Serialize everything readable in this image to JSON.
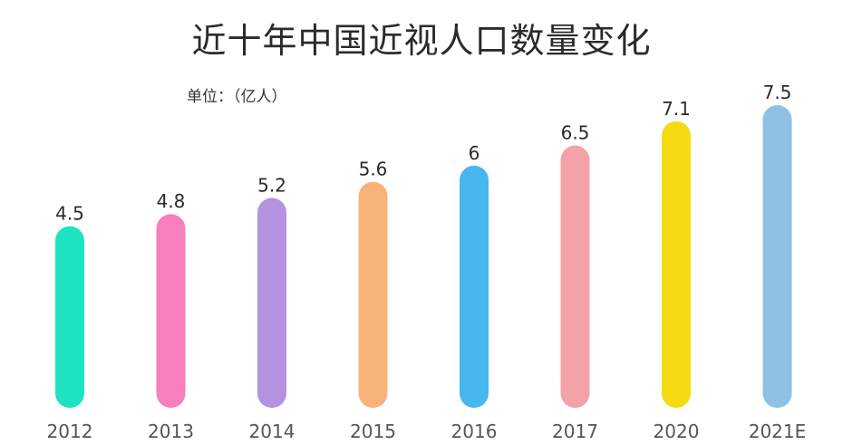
{
  "chart_data": {
    "type": "bar",
    "title": "近十年中国近视人口数量变化",
    "unit_label": "单位：（亿人）",
    "categories": [
      "2012",
      "2013",
      "2014",
      "2015",
      "2016",
      "2017",
      "2020",
      "2021E"
    ],
    "values": [
      4.5,
      4.8,
      5.2,
      5.6,
      6,
      6.5,
      7.1,
      7.5
    ],
    "value_labels": [
      "4.5",
      "4.8",
      "5.2",
      "5.6",
      "6",
      "6.5",
      "7.1",
      "7.5"
    ],
    "colors": [
      "#1de3c3",
      "#f77fba",
      "#b592e0",
      "#f7b478",
      "#48b6ef",
      "#f4a2a8",
      "#f5dc12",
      "#8fc1e4"
    ],
    "ylim": [
      0,
      7.5
    ],
    "grid": false,
    "legend": "none"
  }
}
